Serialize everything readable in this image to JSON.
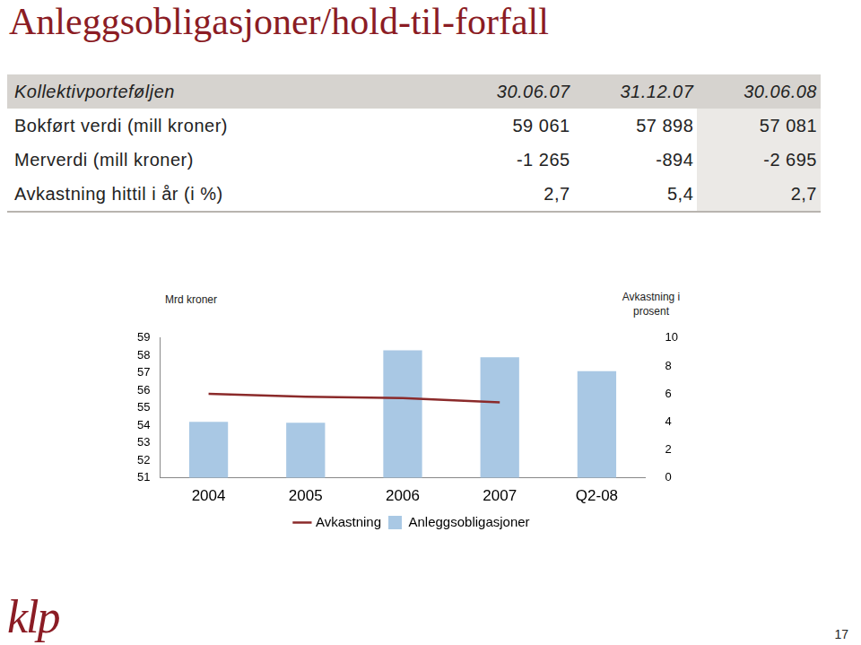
{
  "title": "Anleggsobligasjoner/hold-til-forfall",
  "table": {
    "header": [
      "Kollektivporteføljen",
      "30.06.07",
      "31.12.07",
      "30.06.08"
    ],
    "rows": [
      [
        "Bokført verdi (mill kroner)",
        "59 061",
        "57 898",
        "57 081"
      ],
      [
        "Merverdi (mill kroner)",
        "-1 265",
        "-894",
        "-2 695"
      ],
      [
        "Avkastning hittil i år (i %)",
        "2,7",
        "5,4",
        "2,7"
      ]
    ]
  },
  "chart_data": {
    "type": "bar",
    "categories": [
      "2004",
      "2005",
      "2006",
      "2007",
      "Q2-08"
    ],
    "series": [
      {
        "name": "Anleggsobligasjoner",
        "type": "bar",
        "color": "#a9c8e4",
        "values": [
          54.2,
          54.15,
          58.3,
          57.9,
          57.1
        ]
      },
      {
        "name": "Avkastning",
        "type": "line",
        "color": "#8b2a2a",
        "axis": "y2",
        "values": [
          6.0,
          5.8,
          5.7,
          5.4,
          null
        ]
      }
    ],
    "y_label": "Mrd kroner",
    "y2_label": "Avkastning i prosent",
    "ylim": [
      51,
      59
    ],
    "yticks": [
      51,
      52,
      53,
      54,
      55,
      56,
      57,
      58,
      59
    ],
    "y2lim": [
      0,
      10
    ],
    "y2ticks": [
      0,
      2,
      4,
      6,
      8,
      10
    ],
    "grid": false,
    "legend": "bottom"
  },
  "footer": {
    "logo": "klp",
    "page": "17"
  }
}
